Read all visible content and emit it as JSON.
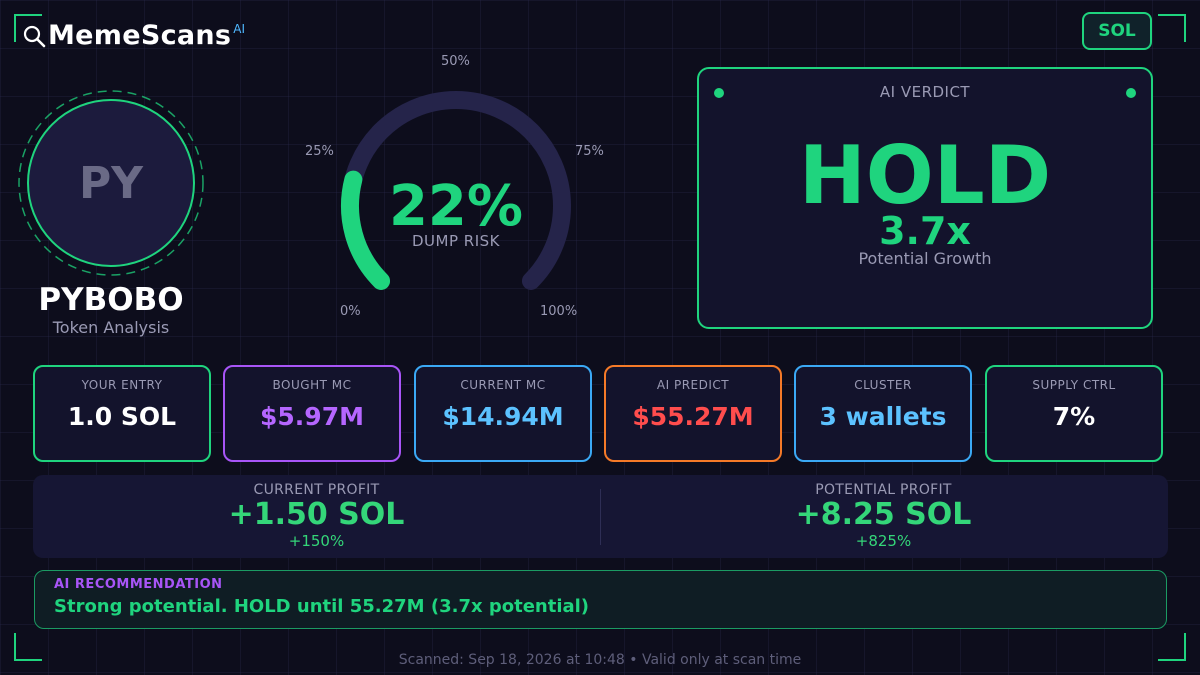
{
  "brand": {
    "name": "MemeScans",
    "superscript": "AI",
    "icon": "magnifier-icon"
  },
  "chain_badge": "SOL",
  "token": {
    "initials": "PY",
    "name": "PYBOBO",
    "subtitle": "Token Analysis"
  },
  "gauge": {
    "value_text": "22%",
    "value_fraction": 0.22,
    "caption": "DUMP RISK",
    "labels": {
      "p0": "0%",
      "p25": "25%",
      "p50": "50%",
      "p75": "75%",
      "p100": "100%"
    },
    "track_color": "#25244a",
    "fill_color": "#1fd47e"
  },
  "verdict": {
    "title": "AI VERDICT",
    "decision": "HOLD",
    "multiplier": "3.7x",
    "subtitle": "Potential Growth"
  },
  "metrics": [
    {
      "label": "YOUR ENTRY",
      "value": "1.0 SOL",
      "border": "#1fd47e",
      "color": "#ffffff"
    },
    {
      "label": "BOUGHT MC",
      "value": "$5.97M",
      "border": "#a855f7",
      "color": "#b566ff"
    },
    {
      "label": "CURRENT MC",
      "value": "$14.94M",
      "border": "#3ba9f5",
      "color": "#5cc2ff"
    },
    {
      "label": "AI PREDICT",
      "value": "$55.27M",
      "border": "#f57a28",
      "color": "#ff4d4d"
    },
    {
      "label": "CLUSTER",
      "value": "3 wallets",
      "border": "#3ba9f5",
      "color": "#5cc2ff"
    },
    {
      "label": "SUPPLY CTRL",
      "value": "7%",
      "border": "#1fd47e",
      "color": "#ffffff"
    }
  ],
  "profit": {
    "current": {
      "label": "CURRENT PROFIT",
      "value": "+1.50 SOL",
      "pct": "+150%"
    },
    "potential": {
      "label": "POTENTIAL PROFIT",
      "value": "+8.25 SOL",
      "pct": "+825%"
    }
  },
  "recommendation": {
    "title": "AI RECOMMENDATION",
    "text": "Strong potential. HOLD until 55.27M (3.7x potential)"
  },
  "footer": "Scanned: Sep 18, 2026 at 10:48  •  Valid only at scan time"
}
